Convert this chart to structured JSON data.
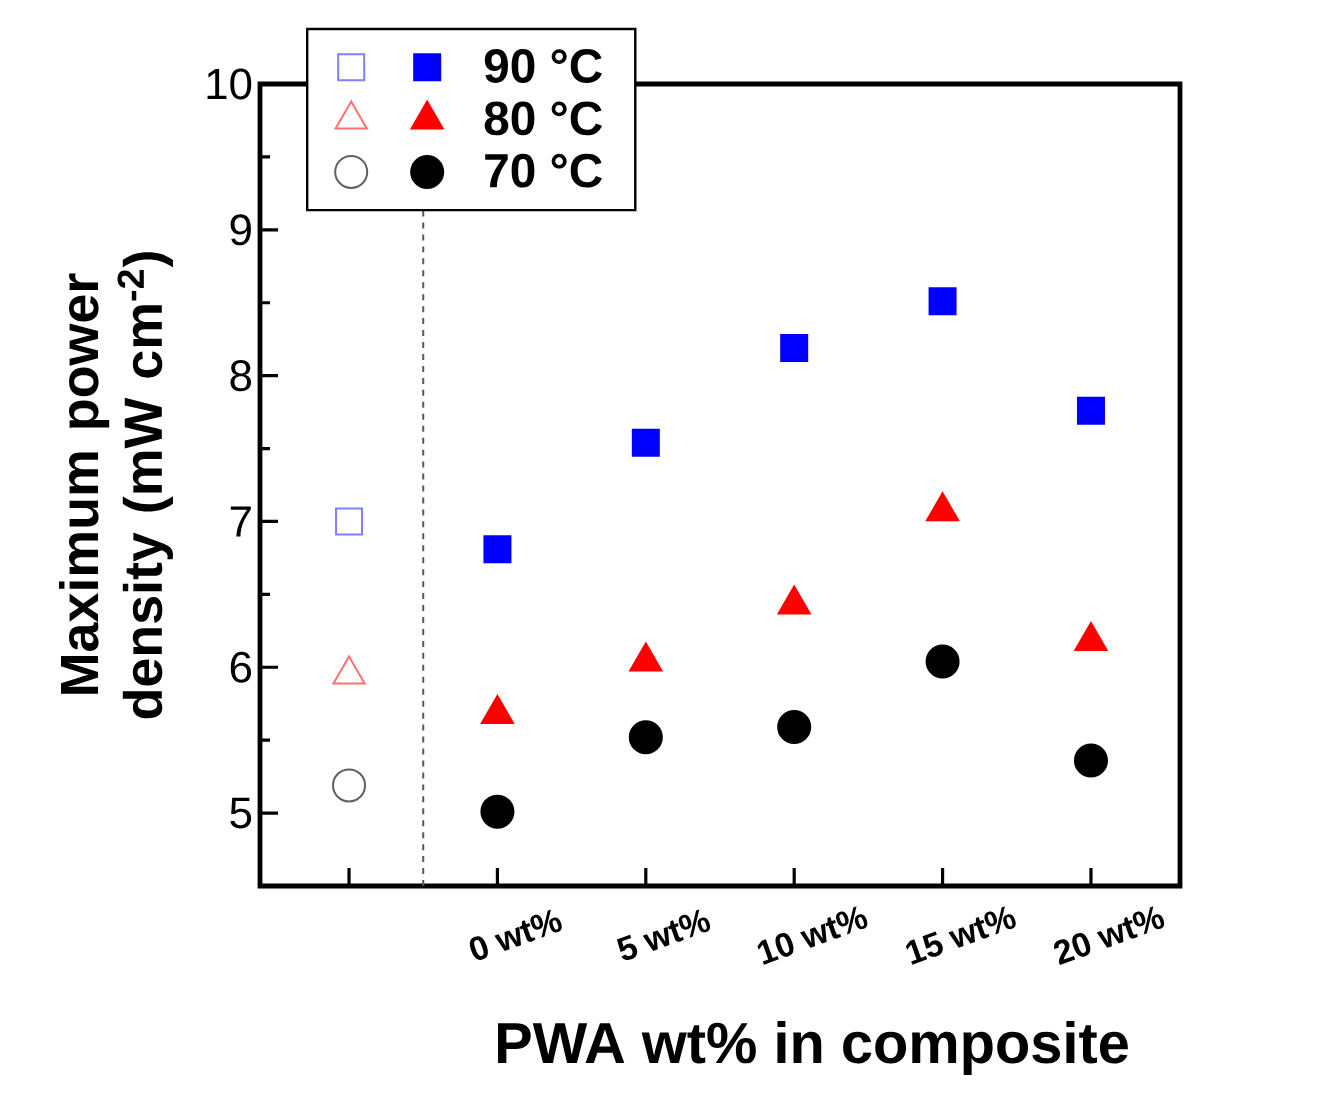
{
  "chart_data": {
    "type": "scatter",
    "xlabel": "PWA wt% in composite",
    "ylabel": "Maximum power density (mW cm$^{-2}$)",
    "categories": [
      null,
      "0 wt%",
      "5 wt%",
      "10 wt%",
      "15 wt%",
      "20 wt%"
    ],
    "ylim": [
      4.5,
      10
    ],
    "yticks": [
      5,
      {
        "value": 5.5,
        "label": null
      },
      6,
      {
        "value": 6.5,
        "label": null
      },
      7,
      {
        "value": 7.5,
        "label": null
      },
      8,
      {
        "value": 8.5,
        "label": null
      },
      9,
      {
        "value": 9.5,
        "label": null
      },
      10
    ],
    "legend": "top left",
    "series": [
      {
        "color": "#7f7fff",
        "marker": "square",
        "values": [
          7.0,
          null,
          null,
          null,
          null,
          null
        ]
      },
      {
        "name": "90 °C",
        "color": "#0000ff",
        "marker": "square",
        "values": [
          null,
          6.81,
          7.54,
          8.19,
          8.51,
          7.76
        ]
      },
      {
        "color": "#ff7070",
        "marker": "triangle",
        "values": [
          5.95,
          null,
          null,
          null,
          null,
          null
        ]
      },
      {
        "name": "80 °C",
        "color": "#ff0000",
        "marker": "triangle",
        "values": [
          null,
          5.68,
          6.04,
          6.43,
          7.07,
          6.18
        ]
      },
      {
        "color": "#606060",
        "marker": "circle",
        "values": [
          5.19,
          null,
          null,
          null,
          null,
          null
        ]
      },
      {
        "name": "70 °C",
        "color": "#000000",
        "marker": "circle",
        "values": [
          null,
          5.01,
          5.52,
          5.59,
          6.04,
          5.36
        ]
      }
    ]
  }
}
